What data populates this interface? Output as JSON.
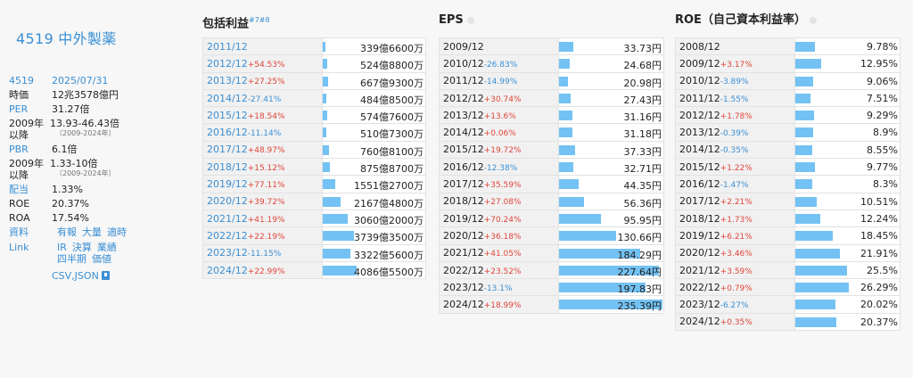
{
  "company": "4519 中外製薬",
  "stats": {
    "code": "4519",
    "date": "2025/07/31",
    "market_cap_label": "時価",
    "market_cap": "12兆3578億円",
    "per_label": "PER",
    "per": "31.27倍",
    "per_range_label": "2009年以降",
    "per_range": "13.93-46.43倍",
    "per_range_years": "（2009-2024年）",
    "pbr_label": "PBR",
    "pbr": "6.1倍",
    "pbr_range_label": "2009年以降",
    "pbr_range": "1.33-10倍",
    "pbr_range_years": "（2009-2024年）",
    "dividend_label": "配当",
    "dividend": "1.33%",
    "roe_label": "ROE",
    "roe": "20.37%",
    "roa_label": "ROA",
    "roa": "17.54%",
    "docs_label": "資料",
    "docs": [
      "有報",
      "大量",
      "適時"
    ],
    "links_label": "Link",
    "links": [
      "IR",
      "決算",
      "業績",
      "四半期",
      "価値"
    ],
    "download": "CSV,JSON"
  },
  "comprehensive_income": {
    "title": "包括利益",
    "footnote": "#7#8",
    "rows": [
      {
        "year": "2011/12",
        "change": "",
        "dir": "",
        "value": "339億6600万",
        "v": 339.66
      },
      {
        "year": "2012/12",
        "change": "+54.53%",
        "dir": "pos",
        "value": "524億8800万",
        "v": 524.88
      },
      {
        "year": "2013/12",
        "change": "+27.25%",
        "dir": "pos",
        "value": "667億9300万",
        "v": 667.93
      },
      {
        "year": "2014/12",
        "change": "-27.41%",
        "dir": "neg",
        "value": "484億8500万",
        "v": 484.85
      },
      {
        "year": "2015/12",
        "change": "+18.54%",
        "dir": "pos",
        "value": "574億7600万",
        "v": 574.76
      },
      {
        "year": "2016/12",
        "change": "-11.14%",
        "dir": "neg",
        "value": "510億7300万",
        "v": 510.73
      },
      {
        "year": "2017/12",
        "change": "+48.97%",
        "dir": "pos",
        "value": "760億8100万",
        "v": 760.81
      },
      {
        "year": "2018/12",
        "change": "+15.12%",
        "dir": "pos",
        "value": "875億8700万",
        "v": 875.87
      },
      {
        "year": "2019/12",
        "change": "+77.11%",
        "dir": "pos",
        "value": "1551億2700万",
        "v": 1551.27
      },
      {
        "year": "2020/12",
        "change": "+39.72%",
        "dir": "pos",
        "value": "2167億4800万",
        "v": 2167.48
      },
      {
        "year": "2021/12",
        "change": "+41.19%",
        "dir": "pos",
        "value": "3060億2000万",
        "v": 3060.2
      },
      {
        "year": "2022/12",
        "change": "+22.19%",
        "dir": "pos",
        "value": "3739億3500万",
        "v": 3739.35
      },
      {
        "year": "2023/12",
        "change": "-11.15%",
        "dir": "neg",
        "value": "3322億5600万",
        "v": 3322.56
      },
      {
        "year": "2024/12",
        "change": "+22.99%",
        "dir": "pos",
        "value": "4086億5500万",
        "v": 4086.55
      }
    ]
  },
  "eps": {
    "title": "EPS",
    "rows": [
      {
        "year": "2009/12",
        "change": "",
        "dir": "",
        "value": "33.73円",
        "v": 33.73
      },
      {
        "year": "2010/12",
        "change": "-26.83%",
        "dir": "neg",
        "value": "24.68円",
        "v": 24.68
      },
      {
        "year": "2011/12",
        "change": "-14.99%",
        "dir": "neg",
        "value": "20.98円",
        "v": 20.98
      },
      {
        "year": "2012/12",
        "change": "+30.74%",
        "dir": "pos",
        "value": "27.43円",
        "v": 27.43
      },
      {
        "year": "2013/12",
        "change": "+13.6%",
        "dir": "pos",
        "value": "31.16円",
        "v": 31.16
      },
      {
        "year": "2014/12",
        "change": "+0.06%",
        "dir": "pos",
        "value": "31.18円",
        "v": 31.18
      },
      {
        "year": "2015/12",
        "change": "+19.72%",
        "dir": "pos",
        "value": "37.33円",
        "v": 37.33
      },
      {
        "year": "2016/12",
        "change": "-12.38%",
        "dir": "neg",
        "value": "32.71円",
        "v": 32.71
      },
      {
        "year": "2017/12",
        "change": "+35.59%",
        "dir": "pos",
        "value": "44.35円",
        "v": 44.35
      },
      {
        "year": "2018/12",
        "change": "+27.08%",
        "dir": "pos",
        "value": "56.36円",
        "v": 56.36
      },
      {
        "year": "2019/12",
        "change": "+70.24%",
        "dir": "pos",
        "value": "95.95円",
        "v": 95.95
      },
      {
        "year": "2020/12",
        "change": "+36.18%",
        "dir": "pos",
        "value": "130.66円",
        "v": 130.66
      },
      {
        "year": "2021/12",
        "change": "+41.05%",
        "dir": "pos",
        "value": "184.29円",
        "v": 184.29
      },
      {
        "year": "2022/12",
        "change": "+23.52%",
        "dir": "pos",
        "value": "227.64円",
        "v": 227.64
      },
      {
        "year": "2023/12",
        "change": "-13.1%",
        "dir": "neg",
        "value": "197.83円",
        "v": 197.83
      },
      {
        "year": "2024/12",
        "change": "+18.99%",
        "dir": "pos",
        "value": "235.39円",
        "v": 235.39
      }
    ]
  },
  "roe_table": {
    "title": "ROE（自己資本利益率）",
    "rows": [
      {
        "year": "2008/12",
        "change": "",
        "dir": "",
        "value": "9.78%",
        "v": 9.78
      },
      {
        "year": "2009/12",
        "change": "+3.17%",
        "dir": "pos",
        "value": "12.95%",
        "v": 12.95
      },
      {
        "year": "2010/12",
        "change": "-3.89%",
        "dir": "neg",
        "value": "9.06%",
        "v": 9.06
      },
      {
        "year": "2011/12",
        "change": "-1.55%",
        "dir": "neg",
        "value": "7.51%",
        "v": 7.51
      },
      {
        "year": "2012/12",
        "change": "+1.78%",
        "dir": "pos",
        "value": "9.29%",
        "v": 9.29
      },
      {
        "year": "2013/12",
        "change": "-0.39%",
        "dir": "neg",
        "value": "8.9%",
        "v": 8.9
      },
      {
        "year": "2014/12",
        "change": "-0.35%",
        "dir": "neg",
        "value": "8.55%",
        "v": 8.55
      },
      {
        "year": "2015/12",
        "change": "+1.22%",
        "dir": "pos",
        "value": "9.77%",
        "v": 9.77
      },
      {
        "year": "2016/12",
        "change": "-1.47%",
        "dir": "neg",
        "value": "8.3%",
        "v": 8.3
      },
      {
        "year": "2017/12",
        "change": "+2.21%",
        "dir": "pos",
        "value": "10.51%",
        "v": 10.51
      },
      {
        "year": "2018/12",
        "change": "+1.73%",
        "dir": "pos",
        "value": "12.24%",
        "v": 12.24
      },
      {
        "year": "2019/12",
        "change": "+6.21%",
        "dir": "pos",
        "value": "18.45%",
        "v": 18.45
      },
      {
        "year": "2020/12",
        "change": "+3.46%",
        "dir": "pos",
        "value": "21.91%",
        "v": 21.91
      },
      {
        "year": "2021/12",
        "change": "+3.59%",
        "dir": "pos",
        "value": "25.5%",
        "v": 25.5
      },
      {
        "year": "2022/12",
        "change": "+0.79%",
        "dir": "pos",
        "value": "26.29%",
        "v": 26.29
      },
      {
        "year": "2023/12",
        "change": "-6.27%",
        "dir": "neg",
        "value": "20.02%",
        "v": 20.02
      },
      {
        "year": "2024/12",
        "change": "+0.35%",
        "dir": "pos",
        "value": "20.37%",
        "v": 20.37
      }
    ]
  },
  "colors": {
    "bar": "#73c2f3",
    "up": "#e0463a",
    "down": "#3a8fd4",
    "link": "#3a8fd4"
  }
}
